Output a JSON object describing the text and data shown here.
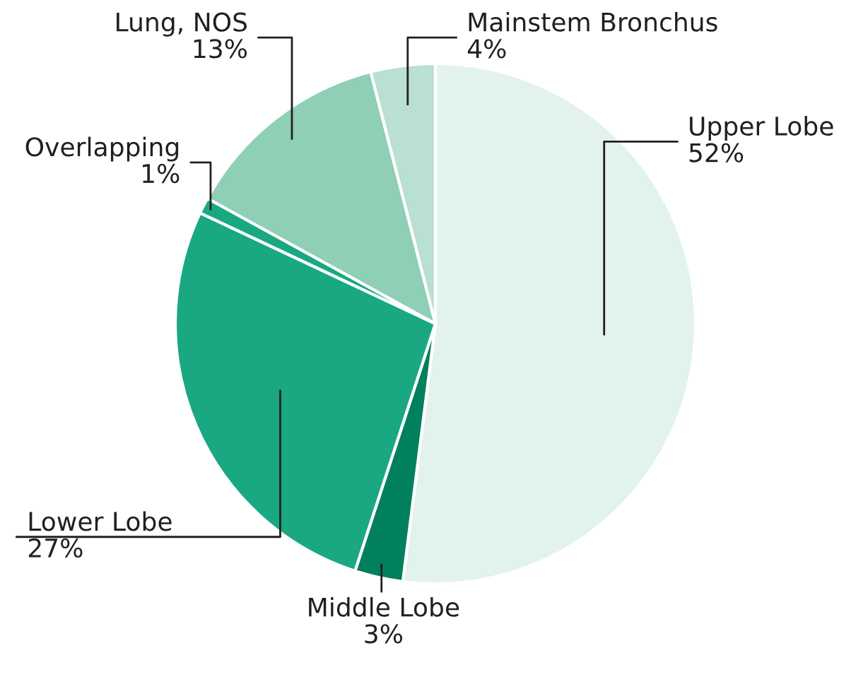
{
  "chart_data": {
    "type": "pie",
    "categories": [
      "Upper Lobe",
      "Middle Lobe",
      "Lower Lobe",
      "Overlapping",
      "Lung, NOS",
      "Mainstem Bronchus"
    ],
    "values": [
      52,
      3,
      27,
      1,
      13,
      4
    ],
    "value_labels": [
      "52%",
      "3%",
      "27%",
      "1%",
      "13%",
      "4%"
    ],
    "colors": [
      "#e2f2ec",
      "#00805c",
      "#19a882",
      "#19a882",
      "#8ecfb6",
      "#b9e0d2"
    ]
  }
}
